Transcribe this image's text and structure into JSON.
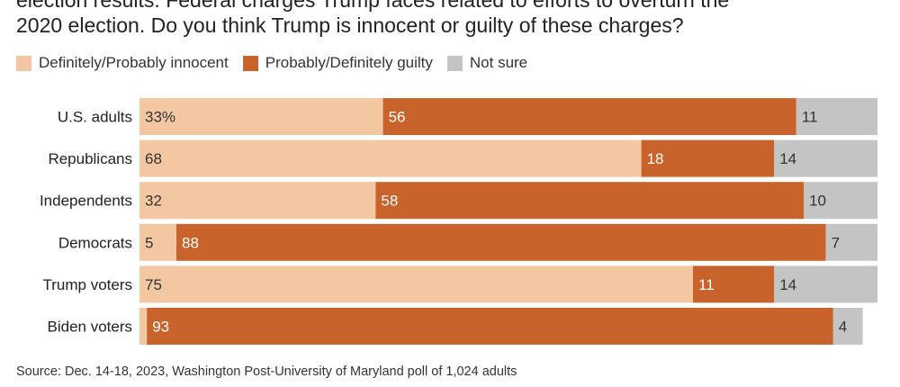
{
  "header": {
    "title_line1": "election results. Federal charges Trump faces related to efforts to overturn the",
    "title_line2": "2020 election. Do you think Trump is innocent or guilty of these charges?"
  },
  "legend": [
    {
      "label": "Definitely/Probably innocent",
      "color": "#f2c7a2"
    },
    {
      "label": "Probably/Definitely guilty",
      "color": "#c8632b"
    },
    {
      "label": "Not sure",
      "color": "#c4c4c4"
    }
  ],
  "footer": {
    "source": "Source: Dec. 14-18, 2023, Washington Post-University of Maryland poll of 1,024 adults"
  },
  "chart_data": {
    "type": "bar",
    "orientation": "horizontal",
    "stacked": true,
    "categories": [
      "U.S. adults",
      "Republicans",
      "Independents",
      "Democrats",
      "Trump voters",
      "Biden voters"
    ],
    "series": [
      {
        "name": "Definitely/Probably innocent",
        "color": "#f2c7a2",
        "values": [
          33,
          68,
          32,
          5,
          75,
          1
        ],
        "labels": [
          "33%",
          "68",
          "32",
          "5",
          "75",
          ""
        ]
      },
      {
        "name": "Probably/Definitely guilty",
        "color": "#c8632b",
        "values": [
          56,
          18,
          58,
          88,
          11,
          93
        ],
        "labels": [
          "56",
          "18",
          "58",
          "88",
          "11",
          "93"
        ]
      },
      {
        "name": "Not sure",
        "color": "#c4c4c4",
        "values": [
          11,
          14,
          10,
          7,
          14,
          4
        ],
        "labels": [
          "11",
          "14",
          "10",
          "7",
          "14",
          "4"
        ]
      }
    ],
    "xlim": [
      0,
      100
    ],
    "grid": false,
    "legend_position": "top-left",
    "title": "",
    "xlabel": "",
    "ylabel": ""
  }
}
